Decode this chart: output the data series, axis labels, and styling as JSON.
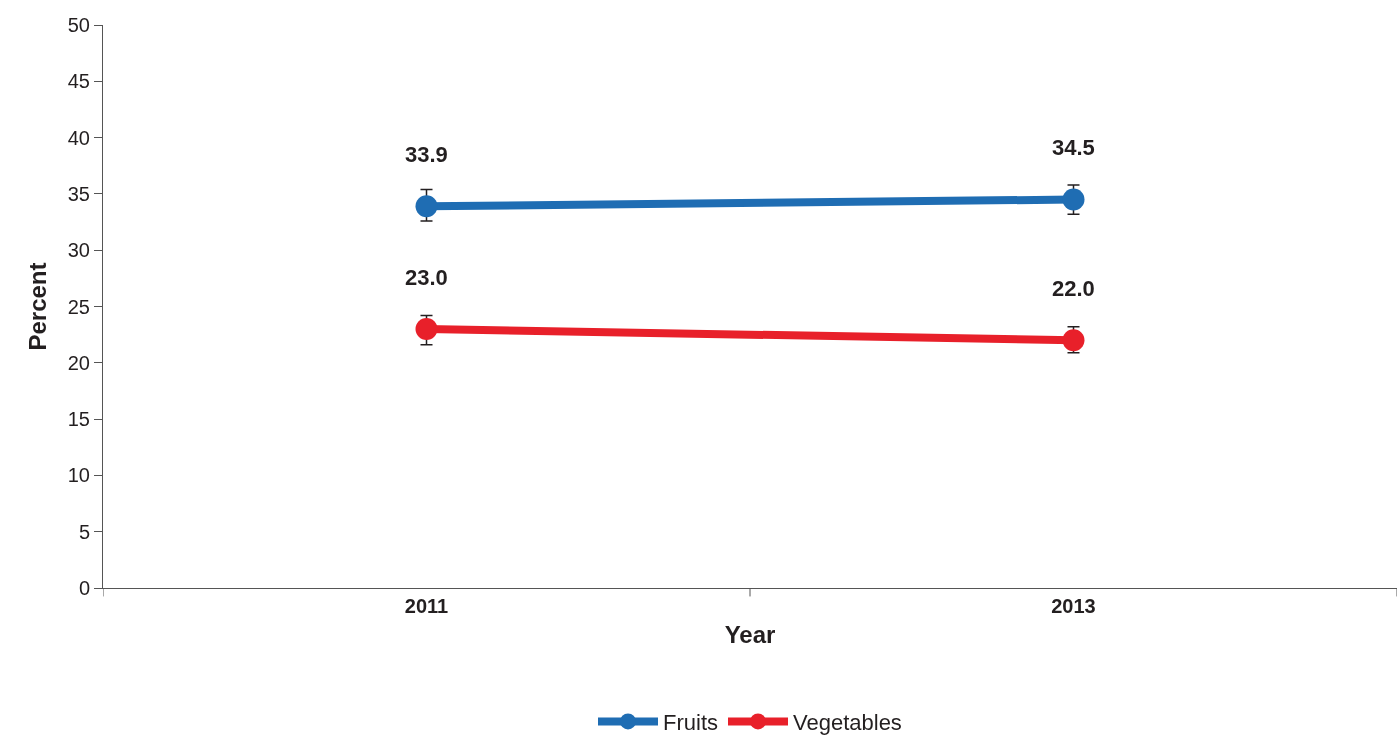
{
  "chart_data": {
    "type": "line",
    "xlabel": "Year",
    "ylabel": "Percent",
    "categories": [
      "2011",
      "2013"
    ],
    "series": [
      {
        "name": "Fruits",
        "color": "#1f6db3",
        "values": [
          33.9,
          34.5
        ],
        "value_labels": [
          "33.9",
          "34.5"
        ],
        "errors": [
          [
            32.6,
            35.4
          ],
          [
            33.2,
            35.8
          ]
        ]
      },
      {
        "name": "Vegetables",
        "color": "#e8202a",
        "values": [
          23.0,
          22.0
        ],
        "value_labels": [
          "23.0",
          "22.0"
        ],
        "errors": [
          [
            21.6,
            24.2
          ],
          [
            20.9,
            23.2
          ]
        ]
      }
    ],
    "ylim": [
      0,
      50
    ],
    "yticks": [
      0,
      5,
      10,
      15,
      20,
      25,
      30,
      35,
      40,
      45,
      50
    ],
    "legend": "bottom",
    "marker": "circle",
    "line_style": "solid"
  }
}
